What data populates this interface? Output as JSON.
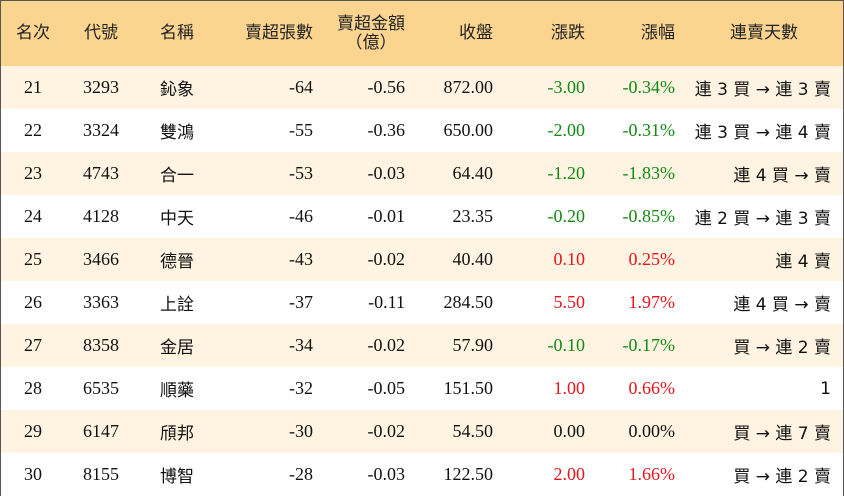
{
  "headers": {
    "rank": "名次",
    "code": "代號",
    "name": "名稱",
    "net_sell_lots": "賣超張數",
    "net_sell_amount_line1": "賣超金額",
    "net_sell_amount_line2": "（億）",
    "close": "收盤",
    "change": "漲跌",
    "change_pct": "漲幅",
    "streak": "連賣天數"
  },
  "colors": {
    "header_bg": "#fbd590",
    "odd_row_bg": "#fef4e1",
    "up": "#e8141c",
    "down": "#138a12"
  },
  "rows": [
    {
      "rank": "21",
      "code": "3293",
      "name": "鈊象",
      "lots": "-64",
      "amount": "-0.56",
      "close": "872.00",
      "change": "-3.00",
      "pct": "-0.34%",
      "streak": "連 3 買 → 連 3 賣",
      "dir": "down"
    },
    {
      "rank": "22",
      "code": "3324",
      "name": "雙鴻",
      "lots": "-55",
      "amount": "-0.36",
      "close": "650.00",
      "change": "-2.00",
      "pct": "-0.31%",
      "streak": "連 3 買 → 連 4 賣",
      "dir": "down"
    },
    {
      "rank": "23",
      "code": "4743",
      "name": "合一",
      "lots": "-53",
      "amount": "-0.03",
      "close": "64.40",
      "change": "-1.20",
      "pct": "-1.83%",
      "streak": "連 4 買 → 賣",
      "dir": "down"
    },
    {
      "rank": "24",
      "code": "4128",
      "name": "中天",
      "lots": "-46",
      "amount": "-0.01",
      "close": "23.35",
      "change": "-0.20",
      "pct": "-0.85%",
      "streak": "連 2 買 → 連 3 賣",
      "dir": "down"
    },
    {
      "rank": "25",
      "code": "3466",
      "name": "德晉",
      "lots": "-43",
      "amount": "-0.02",
      "close": "40.40",
      "change": "0.10",
      "pct": "0.25%",
      "streak": "連 4 賣",
      "dir": "up"
    },
    {
      "rank": "26",
      "code": "3363",
      "name": "上詮",
      "lots": "-37",
      "amount": "-0.11",
      "close": "284.50",
      "change": "5.50",
      "pct": "1.97%",
      "streak": "連 4 買 → 賣",
      "dir": "up"
    },
    {
      "rank": "27",
      "code": "8358",
      "name": "金居",
      "lots": "-34",
      "amount": "-0.02",
      "close": "57.90",
      "change": "-0.10",
      "pct": "-0.17%",
      "streak": "買 → 連 2 賣",
      "dir": "down"
    },
    {
      "rank": "28",
      "code": "6535",
      "name": "順藥",
      "lots": "-32",
      "amount": "-0.05",
      "close": "151.50",
      "change": "1.00",
      "pct": "0.66%",
      "streak": "1",
      "dir": "up"
    },
    {
      "rank": "29",
      "code": "6147",
      "name": "頎邦",
      "lots": "-30",
      "amount": "-0.02",
      "close": "54.50",
      "change": "0.00",
      "pct": "0.00%",
      "streak": "買 → 連 7 賣",
      "dir": "flat"
    },
    {
      "rank": "30",
      "code": "8155",
      "name": "博智",
      "lots": "-28",
      "amount": "-0.03",
      "close": "122.50",
      "change": "2.00",
      "pct": "1.66%",
      "streak": "買 → 連 2 賣",
      "dir": "up"
    }
  ]
}
